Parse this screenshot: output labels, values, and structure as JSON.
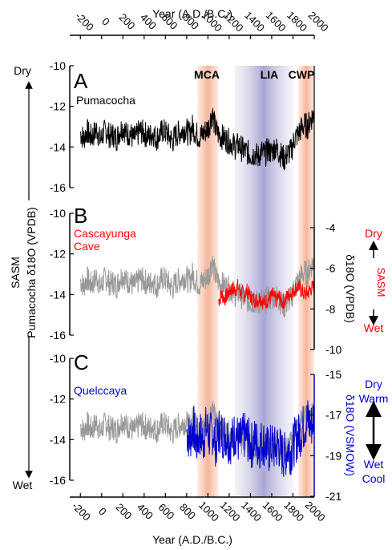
{
  "chart_data": {
    "type": "line",
    "x_axis": {
      "label": "Year (A.D./B.C.)",
      "range": [
        -300,
        2000
      ],
      "ticks": [
        "-200",
        "0",
        "200",
        "400",
        "600",
        "800",
        "1000",
        "1200",
        "1400",
        "1600",
        "1800",
        "2000"
      ]
    },
    "shaded_periods": [
      {
        "label": "MCA",
        "range": [
          900,
          1100
        ],
        "color": "#f9c4ad"
      },
      {
        "label": "LIA",
        "range": [
          1250,
          1800
        ],
        "color": "#b6b3d9"
      },
      {
        "label": "CWP",
        "range": [
          1850,
          2000
        ],
        "color": "#f9c4ad"
      }
    ],
    "left_axis": {
      "label_top": "SASM",
      "label_bottom": "Pumacocha δ18O (VPDB)",
      "dry_label": "Dry",
      "wet_label": "Wet",
      "range": [
        -16,
        -10
      ],
      "ticks": [
        "-10",
        "-12",
        "-14",
        "-16"
      ]
    },
    "panels": [
      {
        "letter": "A",
        "name": "Pumacocha",
        "name_color": "#000000",
        "series_color": "#000000",
        "x_start": -200,
        "x_end": 2000,
        "values": [
          -13.3,
          -13.6,
          -13.2,
          -13.5,
          -13.4,
          -13.1,
          -13.7,
          -13.3,
          -13.2,
          -13.5,
          -13.4,
          -13.6,
          -13.2,
          -13.0,
          -13.4,
          -13.3,
          -13.6,
          -13.5,
          -13.2,
          -13.3,
          -13.4,
          -13.5,
          -13.3,
          -13.6,
          -13.4,
          -13.2,
          -13.3,
          -13.5,
          -13.7,
          -13.4,
          -13.3,
          -13.2,
          -13.1,
          -13.4,
          -13.0,
          -13.3,
          -13.5,
          -13.4,
          -13.2,
          -13.0,
          -12.3,
          -13.1,
          -13.4,
          -13.5,
          -13.6,
          -13.7,
          -13.8,
          -14.0,
          -13.9,
          -14.1,
          -14.2,
          -14.3,
          -14.4,
          -14.3,
          -14.5,
          -14.2,
          -14.4,
          -14.1,
          -14.3,
          -14.0,
          -14.2,
          -14.4,
          -14.6,
          -14.3,
          -14.2,
          -13.6,
          -13.4,
          -13.1,
          -12.9,
          -13.0,
          -12.6,
          -12.4
        ],
        "local_axis": null
      },
      {
        "letter": "B",
        "name": "Cascayunga Cave",
        "name_color": "#ff0000",
        "series_color": "#ff0000",
        "x_start": 1100,
        "x_end": 2000,
        "values": [
          -7.6,
          -7.3,
          -7.5,
          -7.2,
          -7.0,
          -7.1,
          -6.9,
          -7.2,
          -7.3,
          -7.1,
          -7.4,
          -7.5,
          -7.6,
          -7.4,
          -7.7,
          -7.6,
          -7.5,
          -7.3,
          -7.6,
          -7.4,
          -7.7,
          -7.5,
          -7.3,
          -7.2,
          -7.0,
          -6.9,
          -7.1,
          -7.3,
          -7.2,
          -7.0,
          -6.9
        ],
        "local_axis": {
          "label": "δ18O (VPDB)",
          "range": [
            -10,
            -4
          ],
          "ticks": [
            "-4",
            "-6",
            "-8",
            "-10"
          ],
          "color": "#000000",
          "indicator": {
            "top": "Dry",
            "middle": "SASM",
            "bottom": "Wet",
            "color": "#ff0000"
          }
        }
      },
      {
        "letter": "C",
        "name": "Quelccaya",
        "name_color": "#0000cc",
        "series_color": "#0000cc",
        "x_start": 800,
        "x_end": 2000,
        "values": [
          -17.8,
          -18.2,
          -17.5,
          -18.4,
          -17.9,
          -18.3,
          -17.6,
          -18.1,
          -17.8,
          -18.5,
          -17.7,
          -18.0,
          -17.9,
          -18.3,
          -18.2,
          -17.8,
          -18.4,
          -18.1,
          -18.0,
          -18.3,
          -18.5,
          -18.2,
          -18.6,
          -18.3,
          -18.4,
          -18.8,
          -18.5,
          -18.7,
          -18.4,
          -18.9,
          -19.0,
          -18.6,
          -18.8,
          -18.3,
          -18.1,
          -17.8,
          -17.5,
          -17.2,
          -17.6,
          -17.0
        ],
        "local_axis": {
          "label": "δ18O (VSMOW)",
          "range": [
            -21,
            -15
          ],
          "ticks": [
            "-15",
            "-17",
            "-19",
            "-21"
          ],
          "color": "#0000cc",
          "indicator": {
            "top_lines": [
              "Dry",
              "Warm"
            ],
            "bottom_lines": [
              "Wet",
              "Cool"
            ],
            "color": "#0000cc"
          }
        }
      }
    ],
    "reference_series": {
      "name": "Pumacocha",
      "color": "#999999"
    }
  }
}
